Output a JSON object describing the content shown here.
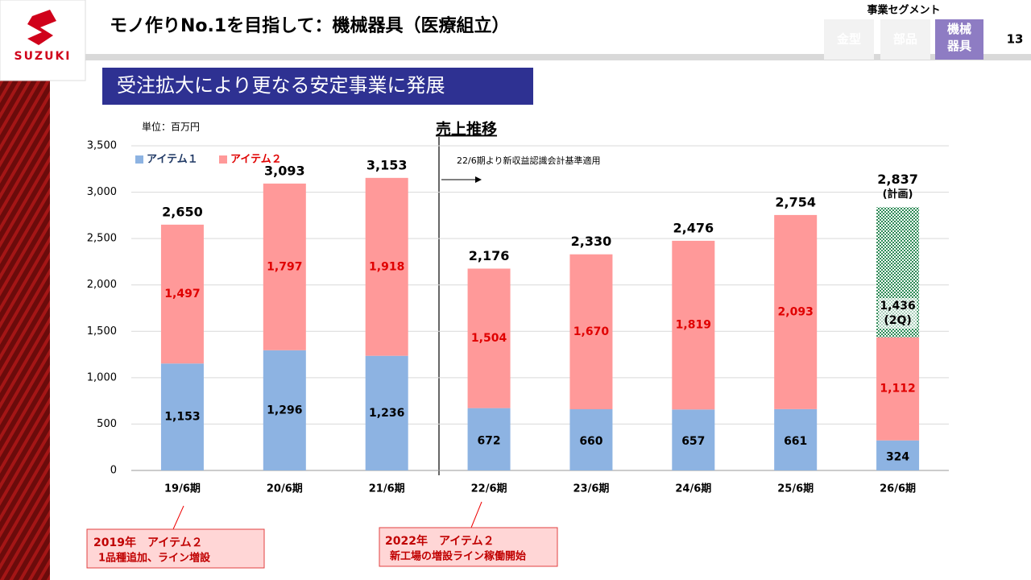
{
  "header": {
    "logo": "SUZUKI",
    "title": "モノ作りNo.1を目指して：機械器具（医療組立）",
    "segment_label": "事業セグメント",
    "tabs": [
      "金型",
      "部品",
      "機械器具"
    ],
    "page": "13",
    "banner": "受注拡大により更なる安定事業に発展"
  },
  "chart_data": {
    "type": "bar",
    "stacked": true,
    "subtitle": "売上推移",
    "unit_label": "単位：百万円",
    "annotation": "22/6期より新収益認識会計基準適用",
    "categories": [
      "19/6期",
      "20/6期",
      "21/6期",
      "22/6期",
      "23/6期",
      "24/6期",
      "25/6期",
      "26/6期"
    ],
    "series": [
      {
        "name": "アイテム１",
        "color": "#8db3e2",
        "label_color": "#000000",
        "values": [
          1153,
          1296,
          1236,
          672,
          660,
          657,
          661,
          324
        ],
        "value_labels": [
          "1,153",
          "1,296",
          "1,236",
          "672",
          "660",
          "657",
          "661",
          "324"
        ]
      },
      {
        "name": "アイテム２",
        "color": "#ff9999",
        "label_color": "#e00000",
        "values": [
          1497,
          1797,
          1918,
          1504,
          1670,
          1819,
          2093,
          1112
        ],
        "value_labels": [
          "1,497",
          "1,797",
          "1,918",
          "1,504",
          "1,670",
          "1,819",
          "2,093",
          "1,112"
        ]
      }
    ],
    "totals": {
      "values": [
        2650,
        3093,
        3153,
        2176,
        2330,
        2476,
        2754,
        2837
      ],
      "value_labels": [
        "2,650",
        "3,093",
        "3,153",
        "2,176",
        "2,330",
        "2,476",
        "2,754",
        "2,837"
      ]
    },
    "plan": {
      "color": "#2e8b57",
      "note": "(計画)",
      "values": [
        null,
        null,
        null,
        null,
        null,
        null,
        null,
        2837
      ],
      "subtotal": 1436,
      "subtotal_label": "1,436",
      "subtotal_note": "(2Q)"
    },
    "ylim": [
      0,
      3500
    ],
    "yticks": [
      0,
      500,
      {
        "value": 1000,
        "label": "1,000"
      },
      {
        "value": 1500,
        "label": "1,500"
      },
      {
        "value": 2000,
        "label": "2,000"
      },
      {
        "value": 2500,
        "label": "2,500"
      },
      {
        "value": 3000,
        "label": "3,000"
      },
      {
        "value": 3500,
        "label": "3,500"
      }
    ],
    "grid": true
  },
  "callouts": [
    {
      "title": "2019年　アイテム２",
      "text": "1品種追加、ライン増設"
    },
    {
      "title": "2022年　アイテム２",
      "text": "新工場の増設ライン稼働開始"
    }
  ]
}
